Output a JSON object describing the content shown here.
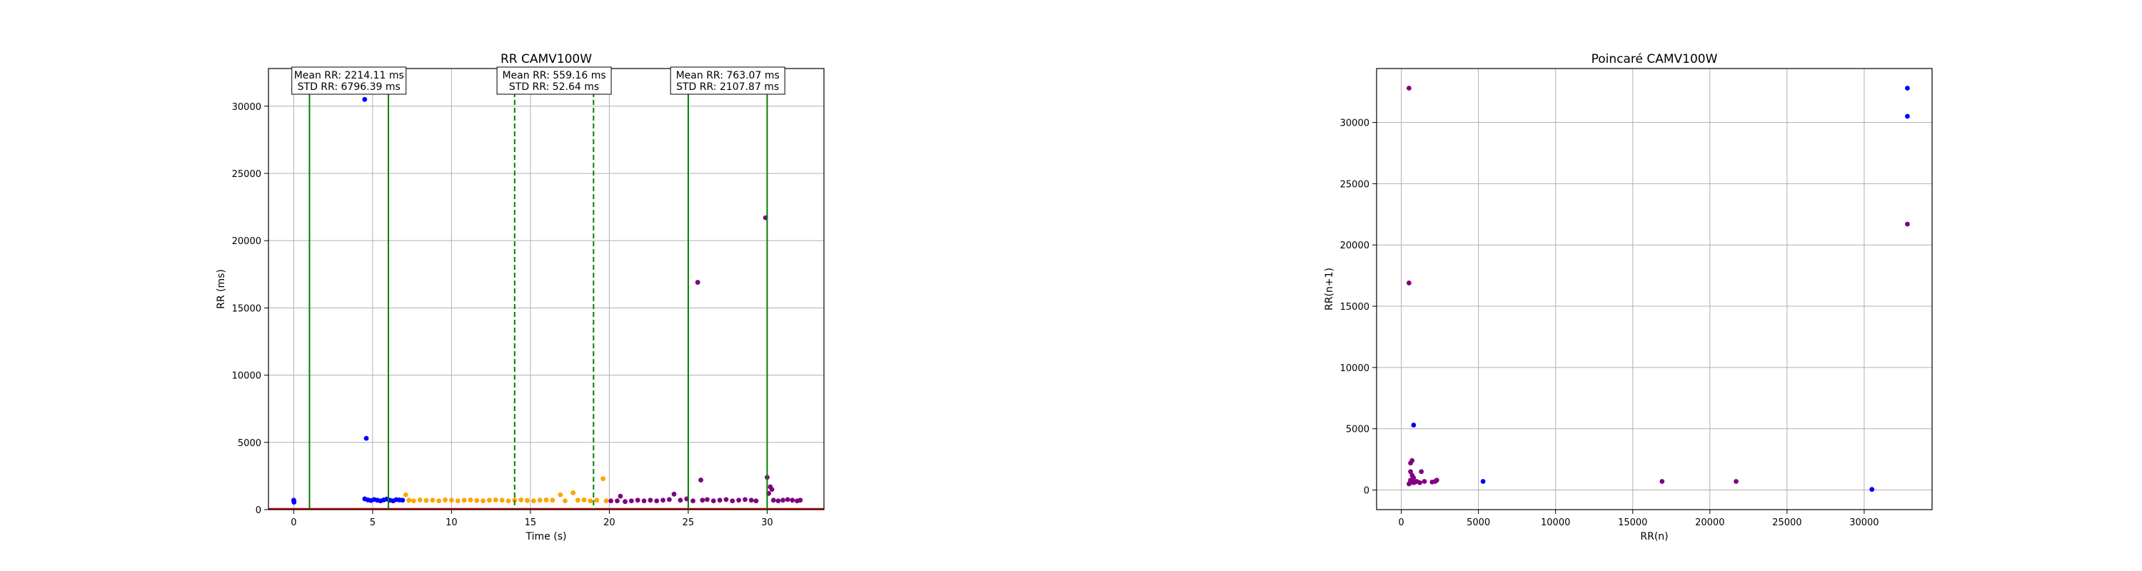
{
  "colors": {
    "seg1": "#0000ff",
    "seg2": "#ffa500",
    "seg3": "#800080",
    "vline": "#008000",
    "baseline": "#cc0000",
    "grid": "#b0b0b0"
  },
  "chart_data": [
    {
      "type": "scatter",
      "title": "RR CAMV100W",
      "xlabel": "Time (s)",
      "ylabel": "RR (ms)",
      "xlim": [
        -1.6,
        33.6
      ],
      "ylim": [
        0,
        32800
      ],
      "xticks": [
        0,
        5,
        10,
        15,
        20,
        25,
        30
      ],
      "yticks": [
        0,
        5000,
        10000,
        15000,
        20000,
        25000,
        30000
      ],
      "grid": true,
      "series": [
        {
          "color_key": "seg1",
          "points": [
            [
              0.0,
              700
            ],
            [
              0.02,
              550
            ],
            [
              4.5,
              30500
            ],
            [
              4.6,
              5300
            ],
            [
              4.5,
              800
            ],
            [
              4.7,
              720
            ],
            [
              4.9,
              680
            ],
            [
              5.1,
              750
            ],
            [
              5.3,
              700
            ],
            [
              5.5,
              650
            ],
            [
              5.7,
              720
            ],
            [
              5.9,
              780
            ],
            [
              6.1,
              700
            ],
            [
              6.3,
              650
            ],
            [
              6.5,
              740
            ],
            [
              6.7,
              720
            ],
            [
              6.9,
              700
            ]
          ]
        },
        {
          "color_key": "seg2",
          "points": [
            [
              7.1,
              1100
            ],
            [
              7.3,
              700
            ],
            [
              7.6,
              650
            ],
            [
              8.0,
              720
            ],
            [
              8.4,
              680
            ],
            [
              8.8,
              700
            ],
            [
              9.2,
              650
            ],
            [
              9.6,
              720
            ],
            [
              10.0,
              700
            ],
            [
              10.4,
              650
            ],
            [
              10.8,
              700
            ],
            [
              11.2,
              720
            ],
            [
              11.6,
              680
            ],
            [
              12.0,
              650
            ],
            [
              12.4,
              700
            ],
            [
              12.8,
              720
            ],
            [
              13.2,
              700
            ],
            [
              13.6,
              650
            ],
            [
              14.0,
              700
            ],
            [
              14.4,
              720
            ],
            [
              14.8,
              680
            ],
            [
              15.2,
              650
            ],
            [
              15.6,
              700
            ],
            [
              16.0,
              720
            ],
            [
              16.4,
              700
            ],
            [
              16.9,
              1100
            ],
            [
              17.2,
              650
            ],
            [
              17.7,
              1250
            ],
            [
              18.0,
              700
            ],
            [
              18.4,
              720
            ],
            [
              18.8,
              650
            ],
            [
              19.2,
              700
            ],
            [
              19.6,
              2300
            ],
            [
              19.8,
              650
            ]
          ]
        },
        {
          "color_key": "seg3",
          "points": [
            [
              20.1,
              650
            ],
            [
              20.5,
              650
            ],
            [
              20.7,
              1000
            ],
            [
              21.0,
              600
            ],
            [
              21.4,
              650
            ],
            [
              21.8,
              700
            ],
            [
              22.2,
              650
            ],
            [
              22.6,
              700
            ],
            [
              23.0,
              650
            ],
            [
              23.4,
              700
            ],
            [
              23.8,
              750
            ],
            [
              24.1,
              1150
            ],
            [
              24.5,
              700
            ],
            [
              24.9,
              800
            ],
            [
              25.3,
              650
            ],
            [
              25.6,
              16900
            ],
            [
              25.8,
              2200
            ],
            [
              25.9,
              700
            ],
            [
              26.2,
              750
            ],
            [
              26.6,
              650
            ],
            [
              27.0,
              700
            ],
            [
              27.4,
              750
            ],
            [
              27.8,
              650
            ],
            [
              28.2,
              700
            ],
            [
              28.6,
              750
            ],
            [
              29.0,
              700
            ],
            [
              29.3,
              650
            ],
            [
              29.9,
              21700
            ],
            [
              30.0,
              2400
            ],
            [
              30.1,
              1200
            ],
            [
              30.2,
              1700
            ],
            [
              30.3,
              1500
            ],
            [
              30.4,
              700
            ],
            [
              30.7,
              650
            ],
            [
              31.0,
              700
            ],
            [
              31.3,
              750
            ],
            [
              31.6,
              700
            ],
            [
              31.9,
              650
            ],
            [
              32.1,
              700
            ]
          ]
        }
      ],
      "vlines": [
        {
          "x": 1.0,
          "style": "solid"
        },
        {
          "x": 6.0,
          "style": "solid"
        },
        {
          "x": 14.0,
          "style": "dashed"
        },
        {
          "x": 19.0,
          "style": "dashed"
        },
        {
          "x": 25.0,
          "style": "solid"
        },
        {
          "x": 30.0,
          "style": "solid"
        }
      ],
      "annotations": [
        {
          "x": 3.5,
          "y": 32800,
          "lines": [
            "Mean RR: 2214.11 ms",
            "STD RR: 6796.39 ms"
          ]
        },
        {
          "x": 16.5,
          "y": 32800,
          "lines": [
            "Mean RR: 559.16 ms",
            "STD RR: 52.64 ms"
          ]
        },
        {
          "x": 27.5,
          "y": 32800,
          "lines": [
            "Mean RR: 763.07 ms",
            "STD RR: 2107.87 ms"
          ]
        }
      ]
    },
    {
      "type": "scatter",
      "title": "Poincaré CAMV100W",
      "xlabel": "RR(n)",
      "ylabel": "RR(n+1)",
      "xlim": [
        -1600,
        34400
      ],
      "ylim": [
        -1600,
        34400
      ],
      "xticks": [
        0,
        5000,
        10000,
        15000,
        20000,
        25000,
        30000
      ],
      "yticks": [
        0,
        5000,
        10000,
        15000,
        20000,
        25000,
        30000
      ],
      "grid": true,
      "series": [
        {
          "color_key": "seg1",
          "points": [
            [
              600,
              700
            ],
            [
              800,
              5300
            ],
            [
              5300,
              700
            ],
            [
              30500,
              50
            ],
            [
              32800,
              32800
            ],
            [
              32800,
              30500
            ]
          ]
        },
        {
          "color_key": "seg3",
          "points": [
            [
              500,
              32800
            ],
            [
              500,
              16900
            ],
            [
              600,
              2200
            ],
            [
              700,
              2400
            ],
            [
              600,
              1500
            ],
            [
              700,
              1200
            ],
            [
              800,
              1000
            ],
            [
              600,
              800
            ],
            [
              700,
              700
            ],
            [
              650,
              650
            ],
            [
              750,
              700
            ],
            [
              700,
              750
            ],
            [
              800,
              600
            ],
            [
              500,
              500
            ],
            [
              900,
              650
            ],
            [
              1000,
              700
            ],
            [
              1200,
              600
            ],
            [
              1300,
              1500
            ],
            [
              1500,
              700
            ],
            [
              2000,
              650
            ],
            [
              2300,
              800
            ],
            [
              2200,
              700
            ],
            [
              16900,
              700
            ],
            [
              21700,
              700
            ],
            [
              32800,
              21700
            ]
          ]
        }
      ]
    }
  ]
}
